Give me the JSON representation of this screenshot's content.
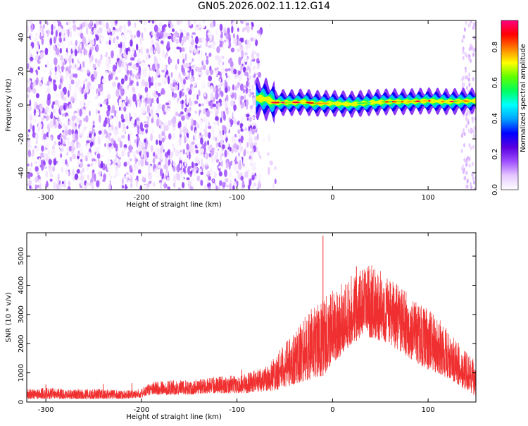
{
  "title": "GN05.2026.002.11.12.G14",
  "chart_data": [
    {
      "type": "heatmap",
      "xlabel": "Height of straight line (km)",
      "ylabel": "Frequency (Hz)",
      "xlim": [
        -320,
        150
      ],
      "ylim": [
        -50,
        50
      ],
      "x_ticks": [
        -300,
        -200,
        -100,
        0,
        100
      ],
      "x_tick_labels": [
        "-300",
        "-200",
        "-100",
        "0",
        "100"
      ],
      "y_ticks": [
        -40,
        -20,
        0,
        20,
        40
      ],
      "y_tick_labels": [
        "-40",
        "-20",
        "0",
        "20",
        "40"
      ],
      "colorbar": {
        "label": "Normalized spectral amplitude",
        "range": [
          0,
          0.95
        ],
        "ticks": [
          0.0,
          0.2,
          0.4,
          0.6,
          0.8
        ],
        "tick_labels": [
          "0.0",
          "0.2",
          "0.4",
          "0.6",
          "0.8"
        ],
        "colors": [
          "#ffffff",
          "#e6c8ff",
          "#a050ff",
          "#5a00e0",
          "#0000ff",
          "#00a0ff",
          "#00ffff",
          "#00ff60",
          "#60ff00",
          "#ffff00",
          "#ff8000",
          "#ff0000",
          "#ff0080"
        ]
      },
      "noise_region": {
        "x_range": [
          -320,
          -75
        ],
        "y_range": [
          -50,
          50
        ],
        "amplitude_range": [
          0.0,
          0.2
        ]
      },
      "signal_band": {
        "x_range": [
          -80,
          150
        ],
        "center_frequency": [
          [
            -80,
            4
          ],
          [
            -70,
            3.5
          ],
          [
            -60,
            1.5
          ],
          [
            -40,
            1.5
          ],
          [
            -30,
            2
          ],
          [
            -20,
            1
          ],
          [
            0,
            1
          ],
          [
            20,
            0.5
          ],
          [
            40,
            1.5
          ],
          [
            60,
            2
          ],
          [
            80,
            2
          ],
          [
            100,
            2.5
          ],
          [
            120,
            2
          ],
          [
            150,
            2.5
          ]
        ],
        "peak_amplitude_range": [
          0.5,
          0.95
        ]
      },
      "grid": false,
      "legend": "none"
    },
    {
      "type": "line",
      "xlabel": "Height of straight line (km)",
      "ylabel": "SNR (10 * v/v)",
      "xlim": [
        -320,
        150
      ],
      "ylim": [
        0,
        5800
      ],
      "x_ticks": [
        -300,
        -200,
        -100,
        0,
        100
      ],
      "x_tick_labels": [
        "-300",
        "-200",
        "-100",
        "0",
        "100"
      ],
      "y_ticks": [
        0,
        1000,
        2000,
        3000,
        4000,
        5000
      ],
      "y_tick_labels": [
        "0",
        "1000",
        "2000",
        "3000",
        "4000",
        "5000"
      ],
      "series": [
        {
          "color": "#f03030",
          "envelope": {
            "x": [
              -320,
              -300,
              -280,
              -260,
              -240,
              -220,
              -200,
              -190,
              -170,
              -150,
              -130,
              -110,
              -100,
              -90,
              -80,
              -70,
              -60,
              -50,
              -40,
              -30,
              -20,
              -10,
              0,
              10,
              20,
              30,
              40,
              50,
              60,
              70,
              80,
              90,
              100,
              110,
              120,
              130,
              140,
              150
            ],
            "low": [
              100,
              100,
              100,
              100,
              100,
              100,
              150,
              250,
              250,
              250,
              300,
              300,
              300,
              300,
              350,
              350,
              400,
              500,
              600,
              700,
              800,
              900,
              1300,
              1600,
              2000,
              2200,
              2200,
              2100,
              2000,
              1700,
              1500,
              1300,
              1100,
              1000,
              800,
              600,
              400,
              200
            ],
            "high": [
              450,
              500,
              450,
              450,
              450,
              400,
              450,
              700,
              750,
              750,
              850,
              900,
              900,
              1000,
              1100,
              1300,
              1600,
              2000,
              2400,
              2900,
              3300,
              3500,
              3900,
              4100,
              4400,
              4600,
              4700,
              4500,
              4200,
              4000,
              3700,
              3400,
              3200,
              2900,
              2500,
              2100,
              1700,
              1400
            ]
          },
          "spikes": [
            [
              -10,
              5700
            ],
            [
              -300,
              600
            ],
            [
              -240,
              620
            ],
            [
              -210,
              650
            ],
            [
              -95,
              1100
            ],
            [
              25,
              4650
            ]
          ]
        }
      ],
      "grid": false,
      "legend": "none"
    }
  ]
}
